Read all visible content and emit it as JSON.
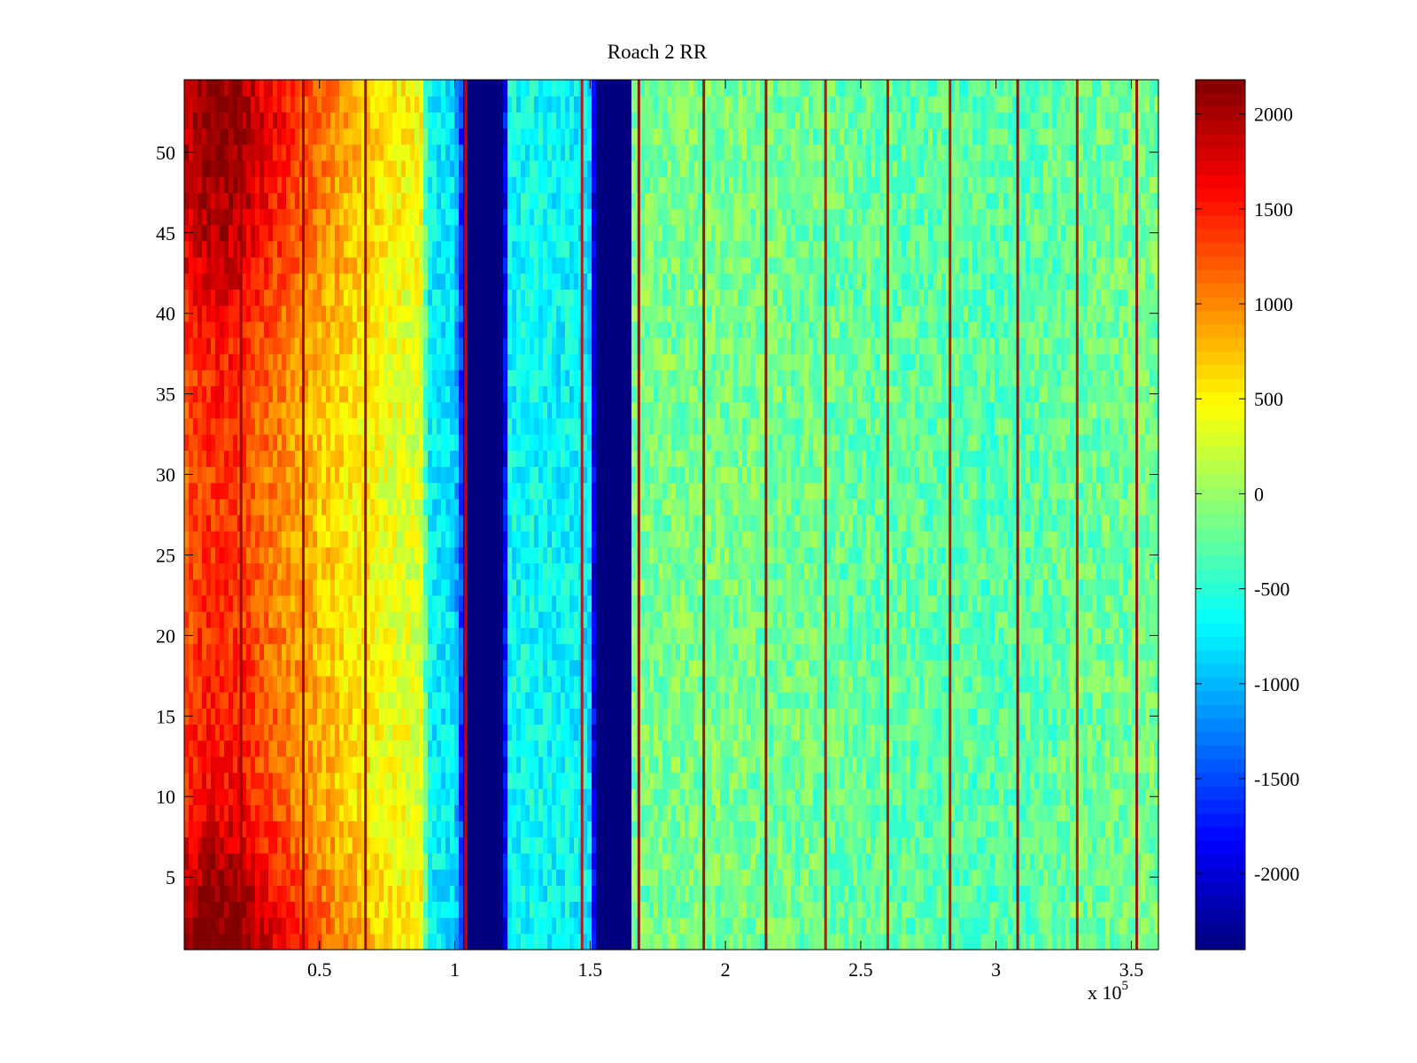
{
  "chart_data": {
    "type": "heatmap",
    "title": "Roach 2 RR",
    "xlabel": "",
    "ylabel": "",
    "x_multiplier_label": "x 10",
    "x_multiplier_exponent": "5",
    "xlim": [
      0,
      3.6
    ],
    "ylim": [
      0.5,
      54.5
    ],
    "x_ticks": [
      {
        "value": 0.5,
        "label": "0.5"
      },
      {
        "value": 1.0,
        "label": "1"
      },
      {
        "value": 1.5,
        "label": "1.5"
      },
      {
        "value": 2.0,
        "label": "2"
      },
      {
        "value": 2.5,
        "label": "2.5"
      },
      {
        "value": 3.0,
        "label": "3"
      },
      {
        "value": 3.5,
        "label": "3.5"
      }
    ],
    "y_ticks": [
      {
        "value": 5,
        "label": "5"
      },
      {
        "value": 10,
        "label": "10"
      },
      {
        "value": 15,
        "label": "15"
      },
      {
        "value": 20,
        "label": "20"
      },
      {
        "value": 25,
        "label": "25"
      },
      {
        "value": 30,
        "label": "30"
      },
      {
        "value": 35,
        "label": "35"
      },
      {
        "value": 40,
        "label": "40"
      },
      {
        "value": 45,
        "label": "45"
      },
      {
        "value": 50,
        "label": "50"
      }
    ],
    "rows": 54,
    "colorbar": {
      "range": [
        -2400,
        2180
      ],
      "colormap": "jet",
      "ticks": [
        {
          "value": 2000,
          "label": "2000"
        },
        {
          "value": 1500,
          "label": "1500"
        },
        {
          "value": 1000,
          "label": "1000"
        },
        {
          "value": 500,
          "label": "500"
        },
        {
          "value": 0,
          "label": "0"
        },
        {
          "value": -500,
          "label": "-500"
        },
        {
          "value": -1000,
          "label": "-1000"
        },
        {
          "value": -1500,
          "label": "-1500"
        },
        {
          "value": -2000,
          "label": "-2000"
        }
      ]
    },
    "column_profile": [
      {
        "x": 0.0,
        "value": 1500
      },
      {
        "x": 0.1,
        "value": 1700
      },
      {
        "x": 0.2,
        "value": 1650
      },
      {
        "x": 0.3,
        "value": 1350
      },
      {
        "x": 0.45,
        "value": 1000
      },
      {
        "x": 0.6,
        "value": 700
      },
      {
        "x": 0.75,
        "value": 450
      },
      {
        "x": 0.88,
        "value": 350
      },
      {
        "x": 0.9,
        "value": -700
      },
      {
        "x": 1.0,
        "value": -800
      },
      {
        "x": 1.05,
        "value": -2400
      },
      {
        "x": 1.18,
        "value": -2400
      },
      {
        "x": 1.2,
        "value": -650
      },
      {
        "x": 1.45,
        "value": -700
      },
      {
        "x": 1.5,
        "value": -800
      },
      {
        "x": 1.52,
        "value": -2400
      },
      {
        "x": 1.65,
        "value": -2400
      },
      {
        "x": 1.66,
        "value": -150
      },
      {
        "x": 2.0,
        "value": -150
      },
      {
        "x": 2.6,
        "value": -250
      },
      {
        "x": 3.0,
        "value": -300
      },
      {
        "x": 3.6,
        "value": -150
      }
    ],
    "row_modulation": [
      {
        "y": 1,
        "factor": 1.35
      },
      {
        "y": 5,
        "factor": 1.2
      },
      {
        "y": 10,
        "factor": 0.95
      },
      {
        "y": 20,
        "factor": 0.85
      },
      {
        "y": 30,
        "factor": 0.8
      },
      {
        "y": 38,
        "factor": 0.9
      },
      {
        "y": 45,
        "factor": 1.15
      },
      {
        "y": 52,
        "factor": 1.3
      },
      {
        "y": 54,
        "factor": 1.25
      }
    ],
    "vertical_stripes": [
      {
        "x": 0.21,
        "value": 2100
      },
      {
        "x": 0.44,
        "value": 2100
      },
      {
        "x": 0.67,
        "value": 2100
      },
      {
        "x": 1.04,
        "value": 1800
      },
      {
        "x": 1.47,
        "value": 1800
      },
      {
        "x": 1.68,
        "value": 2100
      },
      {
        "x": 1.92,
        "value": 2100
      },
      {
        "x": 2.15,
        "value": 2100
      },
      {
        "x": 2.37,
        "value": 1900
      },
      {
        "x": 2.6,
        "value": 1900
      },
      {
        "x": 2.83,
        "value": 1900
      },
      {
        "x": 3.08,
        "value": 2150
      },
      {
        "x": 3.3,
        "value": 1900
      },
      {
        "x": 3.52,
        "value": 2100
      }
    ]
  }
}
